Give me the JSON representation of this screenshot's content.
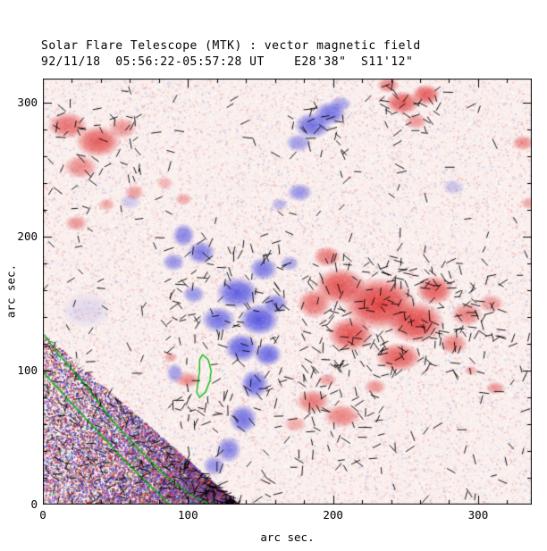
{
  "header": {
    "title": "Solar Flare Telescope (MTK) : vector magnetic field",
    "subtitle": "92/11/18  05:56:22-05:57:28 UT    E28'38\"  S11'12\""
  },
  "axes": {
    "xlabel": "arc sec.",
    "ylabel": "arc sec.",
    "x_ticks": [
      "0",
      "100",
      "200",
      "300"
    ],
    "x_tick_values": [
      0,
      100,
      200,
      300
    ],
    "y_ticks": [
      "0",
      "100",
      "200",
      "300"
    ],
    "y_tick_values": [
      0,
      100,
      200,
      300
    ],
    "x_range": [
      0,
      337
    ],
    "y_range": [
      0,
      318
    ],
    "minor_tick_step": 20
  },
  "chart_data": {
    "type": "heatmap",
    "title": "Solar Flare Telescope (MTK) : vector magnetic field",
    "subtitle": "92/11/18  05:56:22-05:57:28 UT    E28'38\"  S11'12\"",
    "xlabel": "arc sec.",
    "ylabel": "arc sec.",
    "xlim": [
      0,
      337
    ],
    "ylim": [
      0,
      318
    ],
    "legend": "none",
    "description": "Solar vector magnetogram. Red patches = positive line-of-sight magnetic polarity, blue patches = negative polarity, on a noisy pale-pink background. Short black ticks show transverse-field vectors (dense over the strong red region right of center and the central blue region). Green lines are contours near the lower-left corner, which contains dense saturated red/blue noise (bad data region).",
    "colors": {
      "positive": "#e03838",
      "negative": "#5050e0",
      "contour": "#00bb00",
      "vectors": "#000000",
      "background": "#faf0ee"
    },
    "blob_format": [
      "polarity 1=red/positive -1=blue/negative",
      "x_arcsec",
      "y_arcsec",
      "rx_arcsec",
      "ry_arcsec",
      "alpha"
    ],
    "blobs": [
      [
        1,
        17,
        283,
        14,
        10,
        0.7
      ],
      [
        1,
        38,
        271,
        16,
        12,
        0.8
      ],
      [
        1,
        26,
        252,
        12,
        9,
        0.55
      ],
      [
        1,
        55,
        281,
        10,
        8,
        0.5
      ],
      [
        1,
        23,
        210,
        8,
        6,
        0.5
      ],
      [
        1,
        44,
        224,
        6,
        5,
        0.4
      ],
      [
        1,
        63,
        233,
        7,
        6,
        0.45
      ],
      [
        1,
        84,
        240,
        6,
        5,
        0.35
      ],
      [
        1,
        97,
        228,
        6,
        5,
        0.4
      ],
      [
        1,
        248,
        300,
        12,
        9,
        0.8
      ],
      [
        1,
        264,
        306,
        10,
        8,
        0.8
      ],
      [
        1,
        257,
        286,
        8,
        6,
        0.5
      ],
      [
        1,
        238,
        313,
        8,
        6,
        0.6
      ],
      [
        1,
        331,
        270,
        8,
        6,
        0.55
      ],
      [
        1,
        335,
        225,
        6,
        5,
        0.4
      ],
      [
        1,
        205,
        163,
        18,
        14,
        0.85
      ],
      [
        1,
        232,
        150,
        26,
        20,
        0.95
      ],
      [
        1,
        257,
        136,
        20,
        16,
        0.9
      ],
      [
        1,
        212,
        127,
        16,
        13,
        0.85
      ],
      [
        1,
        187,
        150,
        12,
        11,
        0.7
      ],
      [
        1,
        245,
        110,
        16,
        11,
        0.8
      ],
      [
        1,
        270,
        160,
        13,
        11,
        0.8
      ],
      [
        1,
        292,
        142,
        11,
        9,
        0.6
      ],
      [
        1,
        309,
        150,
        9,
        7,
        0.5
      ],
      [
        1,
        283,
        120,
        10,
        8,
        0.6
      ],
      [
        1,
        196,
        185,
        10,
        8,
        0.65
      ],
      [
        1,
        186,
        77,
        12,
        9,
        0.65
      ],
      [
        1,
        206,
        66,
        13,
        9,
        0.6
      ],
      [
        1,
        174,
        60,
        8,
        6,
        0.4
      ],
      [
        1,
        229,
        88,
        8,
        6,
        0.5
      ],
      [
        1,
        196,
        93,
        7,
        5,
        0.45
      ],
      [
        1,
        312,
        87,
        7,
        5,
        0.5
      ],
      [
        1,
        295,
        100,
        5,
        4,
        0.4
      ],
      [
        1,
        100,
        93,
        9,
        6,
        0.55
      ],
      [
        1,
        88,
        110,
        5,
        4,
        0.4
      ],
      [
        -1,
        186,
        283,
        13,
        10,
        0.8
      ],
      [
        -1,
        198,
        292,
        11,
        9,
        0.8
      ],
      [
        -1,
        176,
        270,
        9,
        7,
        0.55
      ],
      [
        -1,
        205,
        299,
        8,
        6,
        0.5
      ],
      [
        -1,
        177,
        233,
        9,
        7,
        0.6
      ],
      [
        -1,
        163,
        224,
        6,
        5,
        0.4
      ],
      [
        -1,
        97,
        201,
        8,
        9,
        0.7
      ],
      [
        -1,
        109,
        188,
        10,
        9,
        0.75
      ],
      [
        -1,
        90,
        181,
        8,
        7,
        0.6
      ],
      [
        -1,
        134,
        158,
        15,
        12,
        0.9
      ],
      [
        -1,
        149,
        138,
        14,
        12,
        0.95
      ],
      [
        -1,
        137,
        117,
        12,
        11,
        0.9
      ],
      [
        -1,
        155,
        112,
        10,
        9,
        0.85
      ],
      [
        -1,
        121,
        138,
        12,
        10,
        0.8
      ],
      [
        -1,
        104,
        157,
        8,
        7,
        0.6
      ],
      [
        -1,
        160,
        150,
        9,
        8,
        0.7
      ],
      [
        -1,
        152,
        176,
        10,
        9,
        0.75
      ],
      [
        -1,
        170,
        180,
        7,
        6,
        0.5
      ],
      [
        -1,
        146,
        90,
        10,
        11,
        0.85
      ],
      [
        -1,
        138,
        64,
        10,
        11,
        0.8
      ],
      [
        -1,
        128,
        41,
        9,
        10,
        0.7
      ],
      [
        -1,
        118,
        29,
        8,
        8,
        0.6
      ],
      [
        -1,
        91,
        98,
        6,
        8,
        0.55
      ],
      [
        -1,
        283,
        237,
        8,
        6,
        0.3
      ],
      [
        -1,
        60,
        226,
        8,
        6,
        0.25
      ],
      [
        -1,
        30,
        145,
        18,
        14,
        0.15
      ]
    ],
    "corner_noise": {
      "x_max": 135,
      "y_max": 128,
      "density": 16000
    },
    "contours": [
      [
        [
          1,
          127
        ],
        [
          10,
          113
        ],
        [
          20,
          101
        ],
        [
          30,
          88
        ],
        [
          40,
          74
        ],
        [
          50,
          60
        ],
        [
          62,
          46
        ],
        [
          74,
          33
        ],
        [
          86,
          20
        ],
        [
          99,
          9
        ],
        [
          113,
          1
        ],
        [
          118,
          0
        ]
      ],
      [
        [
          0,
          99
        ],
        [
          10,
          87
        ],
        [
          22,
          73
        ],
        [
          34,
          59
        ],
        [
          46,
          45
        ],
        [
          58,
          31
        ],
        [
          70,
          18
        ],
        [
          80,
          8
        ],
        [
          87,
          0
        ]
      ],
      [
        [
          110,
          112
        ],
        [
          114,
          108
        ],
        [
          116,
          100
        ],
        [
          115,
          92
        ],
        [
          112,
          84
        ],
        [
          108,
          80
        ],
        [
          106,
          84
        ],
        [
          107,
          92
        ],
        [
          108,
          100
        ],
        [
          108,
          108
        ],
        [
          110,
          112
        ]
      ]
    ],
    "vector_patch_format": [
      "x0",
      "x1",
      "y0",
      "y1",
      "count"
    ],
    "vector_patches": [
      [
        5,
        330,
        150,
        315,
        70
      ],
      [
        290,
        335,
        60,
        200,
        25
      ],
      [
        178,
        288,
        95,
        185,
        200
      ],
      [
        285,
        320,
        120,
        165,
        30
      ],
      [
        85,
        170,
        55,
        205,
        150
      ],
      [
        165,
        235,
        25,
        95,
        60
      ],
      [
        5,
        70,
        240,
        300,
        40
      ],
      [
        235,
        280,
        275,
        315,
        30
      ],
      [
        170,
        210,
        260,
        300,
        25
      ],
      [
        95,
        165,
        2,
        40,
        25
      ],
      [
        240,
        335,
        2,
        60,
        20
      ],
      [
        0,
        90,
        95,
        240,
        30
      ]
    ],
    "corner_vector_count": 220
  }
}
